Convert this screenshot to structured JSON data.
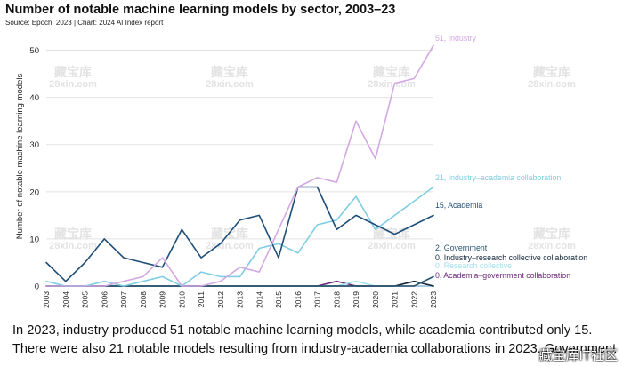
{
  "title": "Number of notable machine learning models by sector, 2003–23",
  "source": "Source: Epoch, 2023 | Chart: 2024 AI Index report",
  "caption": [
    "In 2023, industry produced 51 notable machine learning models, while academia contributed only 15.",
    "There were also 21 notable models resulting from industry-academia collaborations in 2023. Government"
  ],
  "watermark": {
    "logo_text": "藏宝库",
    "domain": "28xin.com",
    "corner": "藏宝库IT社区"
  },
  "chart_data": {
    "type": "line",
    "title": "Number of notable machine learning models by sector, 2003–23",
    "xlabel": "",
    "ylabel": "Number of notable machine learning models",
    "ylim": [
      0,
      55
    ],
    "yticks": [
      0,
      10,
      20,
      30,
      40,
      50
    ],
    "grid": "horizontal",
    "x": [
      2003,
      2004,
      2005,
      2006,
      2007,
      2008,
      2009,
      2010,
      2011,
      2012,
      2013,
      2014,
      2015,
      2016,
      2017,
      2018,
      2019,
      2020,
      2021,
      2022,
      2023
    ],
    "series": [
      {
        "name": "Industry",
        "label": "51, Industry",
        "color": "#d3a8e3",
        "values": [
          0,
          0,
          0,
          0,
          1,
          2,
          6,
          0,
          0,
          1,
          4,
          3,
          12,
          21,
          23,
          22,
          35,
          27,
          43,
          44,
          51
        ]
      },
      {
        "name": "Industry–academia collaboration",
        "label": "21, Industry–academia collaboration",
        "color": "#7fcde3",
        "values": [
          1,
          0,
          0,
          1,
          0,
          1,
          2,
          0,
          3,
          2,
          2,
          8,
          9,
          7,
          13,
          14,
          19,
          12,
          15,
          18,
          21
        ]
      },
      {
        "name": "Academia",
        "label": "15, Academia",
        "color": "#1f4e79",
        "values": [
          5,
          1,
          5,
          10,
          6,
          5,
          4,
          12,
          6,
          9,
          14,
          15,
          6,
          21,
          21,
          12,
          15,
          13,
          11,
          13,
          15
        ]
      },
      {
        "name": "Government",
        "label": "2, Government",
        "color": "#2a5571",
        "values": [
          0,
          0,
          0,
          0,
          0,
          0,
          0,
          0,
          0,
          0,
          0,
          0,
          0,
          0,
          0,
          0,
          0,
          0,
          0,
          0,
          2
        ]
      },
      {
        "name": "Industry–research collective collaboration",
        "label": "0, Industry–research collective collaboration",
        "color": "#12263a",
        "values": [
          0,
          0,
          0,
          0,
          0,
          0,
          0,
          0,
          0,
          0,
          0,
          0,
          0,
          0,
          0,
          0,
          0,
          0,
          0,
          1,
          0
        ]
      },
      {
        "name": "Research collective",
        "label": "0, Research collective",
        "color": "#a4e0ef",
        "values": [
          0,
          0,
          0,
          0,
          0,
          0,
          0,
          0,
          0,
          0,
          0,
          0,
          0,
          0,
          0,
          0,
          1,
          0,
          0,
          0,
          0
        ]
      },
      {
        "name": "Academia–government collaboration",
        "label": "0, Academia–government collaboration",
        "color": "#6b2a78",
        "values": [
          0,
          0,
          0,
          0,
          0,
          0,
          0,
          0,
          0,
          0,
          0,
          0,
          0,
          0,
          0,
          1,
          0,
          0,
          0,
          0,
          0
        ]
      }
    ]
  }
}
